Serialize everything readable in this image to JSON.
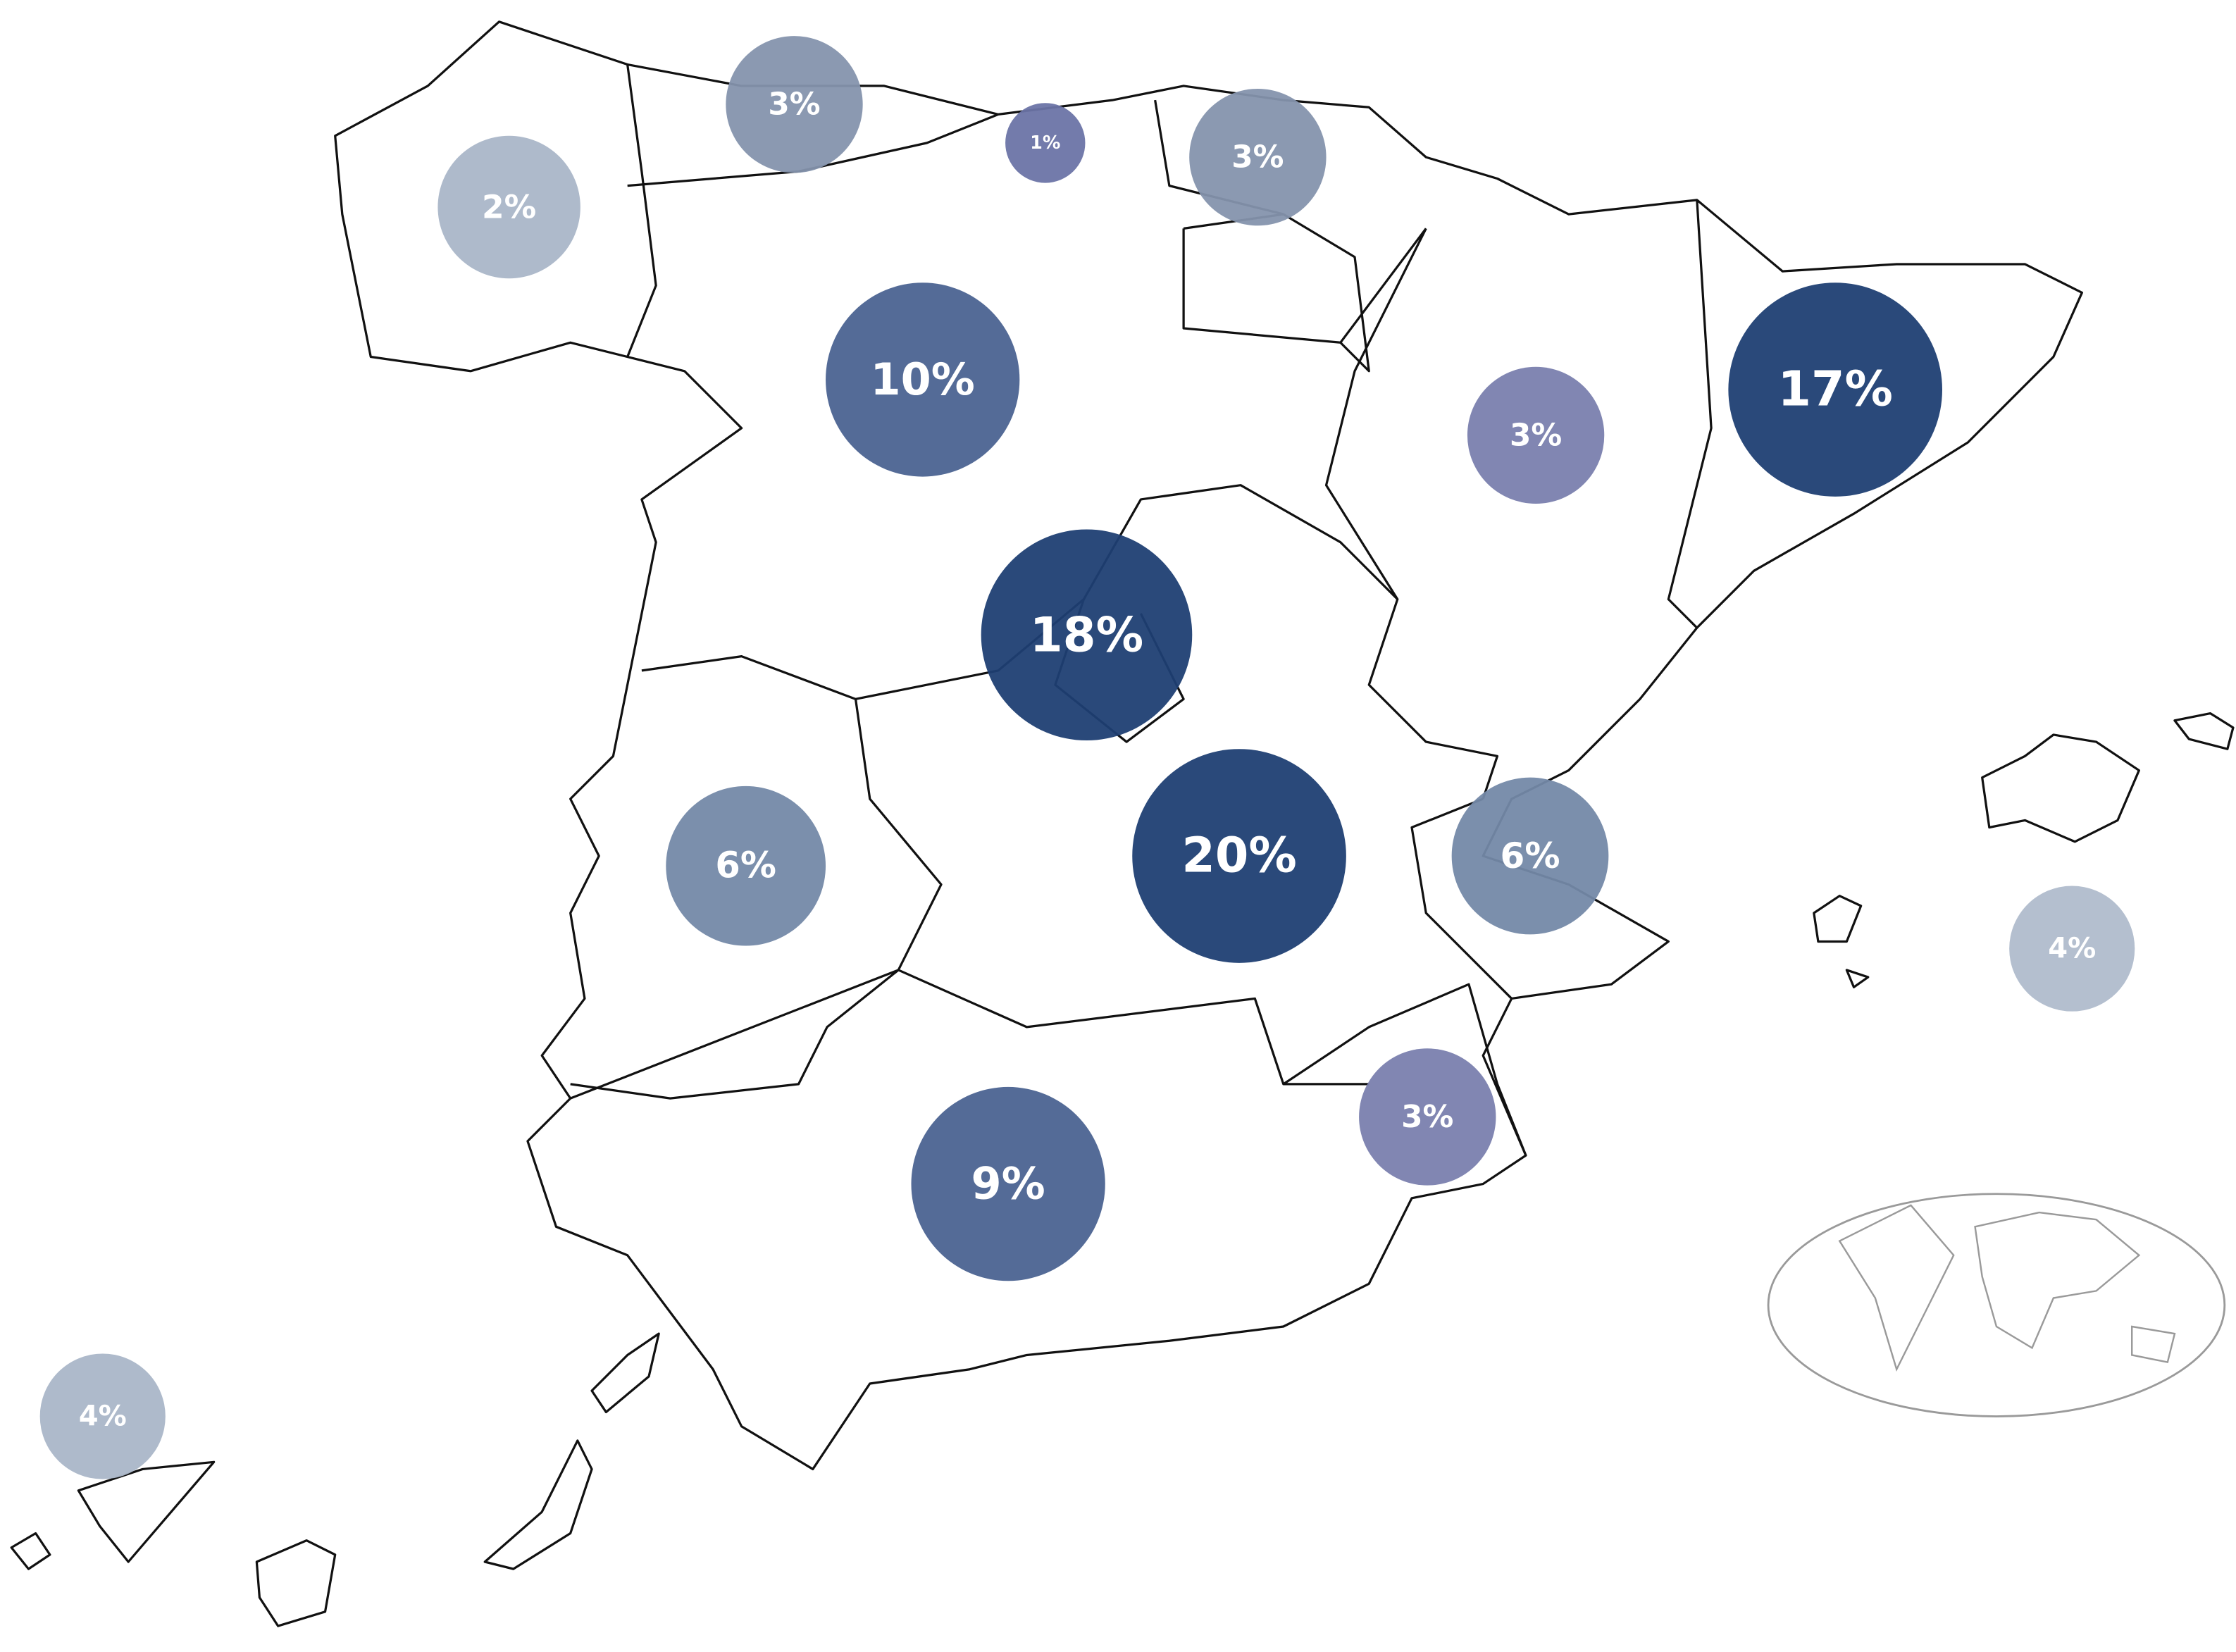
{
  "chart_data": {
    "type": "bubble-map",
    "values": [
      2,
      3,
      1,
      3,
      10,
      3,
      17,
      18,
      20,
      6,
      6,
      4,
      3,
      9,
      4
    ],
    "value_labels": [
      "2%",
      "3%",
      "1%",
      "3%",
      "10%",
      "3%",
      "17%",
      "18%",
      "20%",
      "6%",
      "6%",
      "4%",
      "3%",
      "9%",
      "4%"
    ],
    "colors": [
      "#aab6c8",
      "#8594ad",
      "#6b74a6",
      "#8594ad",
      "#4b6391",
      "#7a80ae",
      "#1f3f73",
      "#1f3f73",
      "#1f3f73",
      "#7489a8",
      "#7489a8",
      "#b0bccc",
      "#7a80ae",
      "#4b6391",
      "#aab6c8"
    ]
  }
}
